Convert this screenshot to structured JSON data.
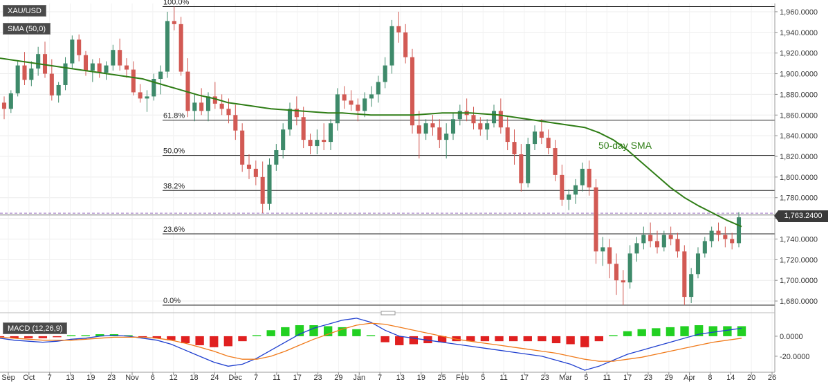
{
  "chart_data": {
    "type": "candlestick",
    "instrument": "XAU/USD",
    "indicator_label": "SMA (50,0)",
    "sma_annotation": "50-day SMA",
    "current_price_label": "1,763.2400",
    "current_price": 1763.24,
    "ylim": [
      1672,
      1968
    ],
    "y_ticks": [
      {
        "v": 1960,
        "label": "1,960.0000"
      },
      {
        "v": 1940,
        "label": "1,940.0000"
      },
      {
        "v": 1920,
        "label": "1,920.0000"
      },
      {
        "v": 1900,
        "label": "1,900.0000"
      },
      {
        "v": 1880,
        "label": "1,880.0000"
      },
      {
        "v": 1860,
        "label": "1,860.0000"
      },
      {
        "v": 1840,
        "label": "1,840.0000"
      },
      {
        "v": 1820,
        "label": "1,820.0000"
      },
      {
        "v": 1800,
        "label": "1,800.0000"
      },
      {
        "v": 1780,
        "label": "1,780.0000"
      },
      {
        "v": 1760,
        "label": "1,760.0000"
      },
      {
        "v": 1740,
        "label": "1,740.0000"
      },
      {
        "v": 1720,
        "label": "1,720.0000"
      },
      {
        "v": 1700,
        "label": "1,700.0000"
      },
      {
        "v": 1680,
        "label": "1,680.0000"
      }
    ],
    "x_labels": [
      "Sep",
      "Oct",
      "7",
      "13",
      "19",
      "23",
      "Nov",
      "6",
      "12",
      "18",
      "24",
      "Dec",
      "7",
      "11",
      "17",
      "23",
      "29",
      "Jan",
      "7",
      "13",
      "19",
      "25",
      "Feb",
      "5",
      "11",
      "17",
      "23",
      "Mar",
      "5",
      "11",
      "17",
      "23",
      "29",
      "Apr",
      "8",
      "14",
      "20",
      "26"
    ],
    "fib_levels": [
      {
        "label": "100.0%",
        "price": 1965
      },
      {
        "label": "61.8%",
        "price": 1855
      },
      {
        "label": "50.0%",
        "price": 1821
      },
      {
        "label": "38.2%",
        "price": 1787
      },
      {
        "label": "23.6%",
        "price": 1745
      },
      {
        "label": "0.0%",
        "price": 1676
      }
    ],
    "fib_dashed_level": 1765,
    "candles": [
      [
        1872,
        1878,
        1856,
        1866
      ],
      [
        1866,
        1884,
        1862,
        1881
      ],
      [
        1881,
        1912,
        1878,
        1908
      ],
      [
        1908,
        1921,
        1889,
        1894
      ],
      [
        1894,
        1912,
        1888,
        1905
      ],
      [
        1905,
        1926,
        1898,
        1919
      ],
      [
        1919,
        1931,
        1896,
        1900
      ],
      [
        1900,
        1914,
        1874,
        1879
      ],
      [
        1879,
        1892,
        1872,
        1889
      ],
      [
        1889,
        1916,
        1884,
        1910
      ],
      [
        1910,
        1937,
        1905,
        1933
      ],
      [
        1933,
        1938,
        1912,
        1918
      ],
      [
        1918,
        1922,
        1898,
        1903
      ],
      [
        1903,
        1914,
        1892,
        1910
      ],
      [
        1910,
        1915,
        1896,
        1901
      ],
      [
        1901,
        1912,
        1894,
        1908
      ],
      [
        1908,
        1928,
        1903,
        1923
      ],
      [
        1923,
        1934,
        1903,
        1908
      ],
      [
        1908,
        1915,
        1896,
        1904
      ],
      [
        1904,
        1912,
        1879,
        1882
      ],
      [
        1882,
        1890,
        1872,
        1876
      ],
      [
        1876,
        1884,
        1863,
        1878
      ],
      [
        1878,
        1900,
        1874,
        1895
      ],
      [
        1895,
        1908,
        1880,
        1902
      ],
      [
        1902,
        1960,
        1896,
        1951
      ],
      [
        1951,
        1965,
        1942,
        1948
      ],
      [
        1948,
        1955,
        1898,
        1902
      ],
      [
        1902,
        1915,
        1858,
        1864
      ],
      [
        1864,
        1881,
        1854,
        1872
      ],
      [
        1872,
        1886,
        1860,
        1864
      ],
      [
        1864,
        1882,
        1854,
        1878
      ],
      [
        1878,
        1892,
        1866,
        1871
      ],
      [
        1871,
        1880,
        1860,
        1866
      ],
      [
        1866,
        1876,
        1852,
        1860
      ],
      [
        1860,
        1870,
        1836,
        1845
      ],
      [
        1845,
        1852,
        1805,
        1812
      ],
      [
        1812,
        1822,
        1798,
        1808
      ],
      [
        1808,
        1816,
        1792,
        1800
      ],
      [
        1800,
        1815,
        1765,
        1774
      ],
      [
        1774,
        1818,
        1768,
        1812
      ],
      [
        1812,
        1832,
        1806,
        1826
      ],
      [
        1826,
        1852,
        1818,
        1846
      ],
      [
        1846,
        1872,
        1840,
        1866
      ],
      [
        1866,
        1878,
        1850,
        1858
      ],
      [
        1858,
        1868,
        1828,
        1836
      ],
      [
        1836,
        1842,
        1822,
        1830
      ],
      [
        1830,
        1846,
        1822,
        1836
      ],
      [
        1836,
        1852,
        1826,
        1834
      ],
      [
        1834,
        1856,
        1826,
        1852
      ],
      [
        1852,
        1886,
        1845,
        1880
      ],
      [
        1880,
        1888,
        1866,
        1874
      ],
      [
        1874,
        1884,
        1864,
        1870
      ],
      [
        1870,
        1876,
        1854,
        1864
      ],
      [
        1864,
        1882,
        1858,
        1876
      ],
      [
        1876,
        1888,
        1868,
        1880
      ],
      [
        1880,
        1898,
        1872,
        1892
      ],
      [
        1892,
        1916,
        1886,
        1908
      ],
      [
        1908,
        1952,
        1900,
        1946
      ],
      [
        1946,
        1960,
        1930,
        1940
      ],
      [
        1940,
        1948,
        1910,
        1916
      ],
      [
        1916,
        1924,
        1842,
        1850
      ],
      [
        1850,
        1864,
        1818,
        1842
      ],
      [
        1842,
        1856,
        1836,
        1852
      ],
      [
        1852,
        1860,
        1840,
        1848
      ],
      [
        1848,
        1856,
        1828,
        1836
      ],
      [
        1836,
        1852,
        1818,
        1842
      ],
      [
        1842,
        1862,
        1836,
        1856
      ],
      [
        1856,
        1870,
        1850,
        1864
      ],
      [
        1864,
        1876,
        1854,
        1860
      ],
      [
        1860,
        1868,
        1846,
        1852
      ],
      [
        1852,
        1858,
        1840,
        1846
      ],
      [
        1846,
        1856,
        1836,
        1852
      ],
      [
        1852,
        1870,
        1848,
        1864
      ],
      [
        1864,
        1876,
        1842,
        1848
      ],
      [
        1848,
        1858,
        1826,
        1834
      ],
      [
        1834,
        1846,
        1812,
        1822
      ],
      [
        1822,
        1832,
        1786,
        1794
      ],
      [
        1794,
        1838,
        1790,
        1832
      ],
      [
        1832,
        1850,
        1826,
        1844
      ],
      [
        1844,
        1856,
        1832,
        1838
      ],
      [
        1838,
        1846,
        1822,
        1828
      ],
      [
        1828,
        1836,
        1796,
        1802
      ],
      [
        1802,
        1812,
        1772,
        1778
      ],
      [
        1778,
        1788,
        1768,
        1783
      ],
      [
        1783,
        1798,
        1774,
        1792
      ],
      [
        1792,
        1814,
        1786,
        1808
      ],
      [
        1808,
        1816,
        1782,
        1790
      ],
      [
        1790,
        1798,
        1716,
        1728
      ],
      [
        1728,
        1742,
        1714,
        1732
      ],
      [
        1732,
        1740,
        1702,
        1716
      ],
      [
        1716,
        1726,
        1686,
        1700
      ],
      [
        1700,
        1710,
        1676,
        1698
      ],
      [
        1698,
        1734,
        1692,
        1726
      ],
      [
        1726,
        1742,
        1718,
        1736
      ],
      [
        1736,
        1752,
        1730,
        1744
      ],
      [
        1744,
        1756,
        1732,
        1738
      ],
      [
        1738,
        1748,
        1726,
        1732
      ],
      [
        1732,
        1748,
        1728,
        1744
      ],
      [
        1744,
        1752,
        1734,
        1740
      ],
      [
        1740,
        1746,
        1722,
        1728
      ],
      [
        1728,
        1734,
        1676,
        1684
      ],
      [
        1684,
        1712,
        1678,
        1706
      ],
      [
        1706,
        1732,
        1702,
        1726
      ],
      [
        1726,
        1742,
        1722,
        1738
      ],
      [
        1738,
        1752,
        1732,
        1748
      ],
      [
        1748,
        1756,
        1738,
        1744
      ],
      [
        1744,
        1752,
        1732,
        1740
      ],
      [
        1740,
        1746,
        1730,
        1736
      ],
      [
        1736,
        1766,
        1732,
        1761
      ]
    ],
    "sma": [
      1915,
      1913,
      1911,
      1909,
      1907,
      1905,
      1903,
      1901,
      1899,
      1897,
      1895,
      1891,
      1887,
      1883,
      1879,
      1876,
      1872,
      1870,
      1868,
      1866,
      1865,
      1864,
      1863,
      1862,
      1862,
      1861,
      1860,
      1860,
      1860,
      1860,
      1861,
      1862,
      1862,
      1862,
      1861,
      1860,
      1858,
      1856,
      1854,
      1852,
      1850,
      1848,
      1843,
      1836,
      1826,
      1814,
      1802,
      1790,
      1780,
      1772,
      1765,
      1758,
      1752
    ],
    "macd": {
      "label": "MACD (12,26,9)",
      "ylim": [
        -36,
        20
      ],
      "y_ticks": [
        {
          "v": 0,
          "label": "0.0000"
        },
        {
          "v": -20,
          "label": "-20.0000"
        }
      ],
      "macd": [
        -2,
        -4,
        -5,
        -6,
        -5,
        -3,
        -2,
        0,
        1,
        0,
        -2,
        -4,
        -8,
        -14,
        -20,
        -26,
        -30,
        -28,
        -22,
        -14,
        -6,
        2,
        8,
        12,
        16,
        18,
        14,
        6,
        0,
        -2,
        -4,
        -6,
        -8,
        -10,
        -12,
        -14,
        -16,
        -18,
        -20,
        -24,
        -28,
        -34,
        -30,
        -24,
        -18,
        -14,
        -10,
        -6,
        -2,
        2,
        4,
        6,
        8
      ],
      "signal": [
        -1,
        -2,
        -3,
        -4,
        -4,
        -4,
        -3,
        -2,
        -1,
        -1,
        -1,
        -2,
        -4,
        -7,
        -11,
        -15,
        -20,
        -23,
        -23,
        -20,
        -15,
        -9,
        -3,
        2,
        7,
        11,
        13,
        12,
        9,
        6,
        3,
        0,
        -3,
        -5,
        -7,
        -9,
        -11,
        -13,
        -15,
        -17,
        -20,
        -23,
        -25,
        -25,
        -23,
        -21,
        -18,
        -15,
        -12,
        -9,
        -6,
        -4,
        -2
      ],
      "hist": [
        -1,
        -2,
        -2,
        -2,
        -1,
        1,
        1,
        2,
        2,
        1,
        -1,
        -2,
        -4,
        -7,
        -9,
        -11,
        -10,
        -5,
        1,
        6,
        9,
        11,
        11,
        10,
        9,
        7,
        1,
        -6,
        -9,
        -8,
        -7,
        -6,
        -5,
        -5,
        -5,
        -5,
        -5,
        -5,
        -5,
        -7,
        -8,
        -11,
        -5,
        1,
        5,
        7,
        8,
        9,
        10,
        11,
        10,
        10,
        10
      ]
    }
  }
}
